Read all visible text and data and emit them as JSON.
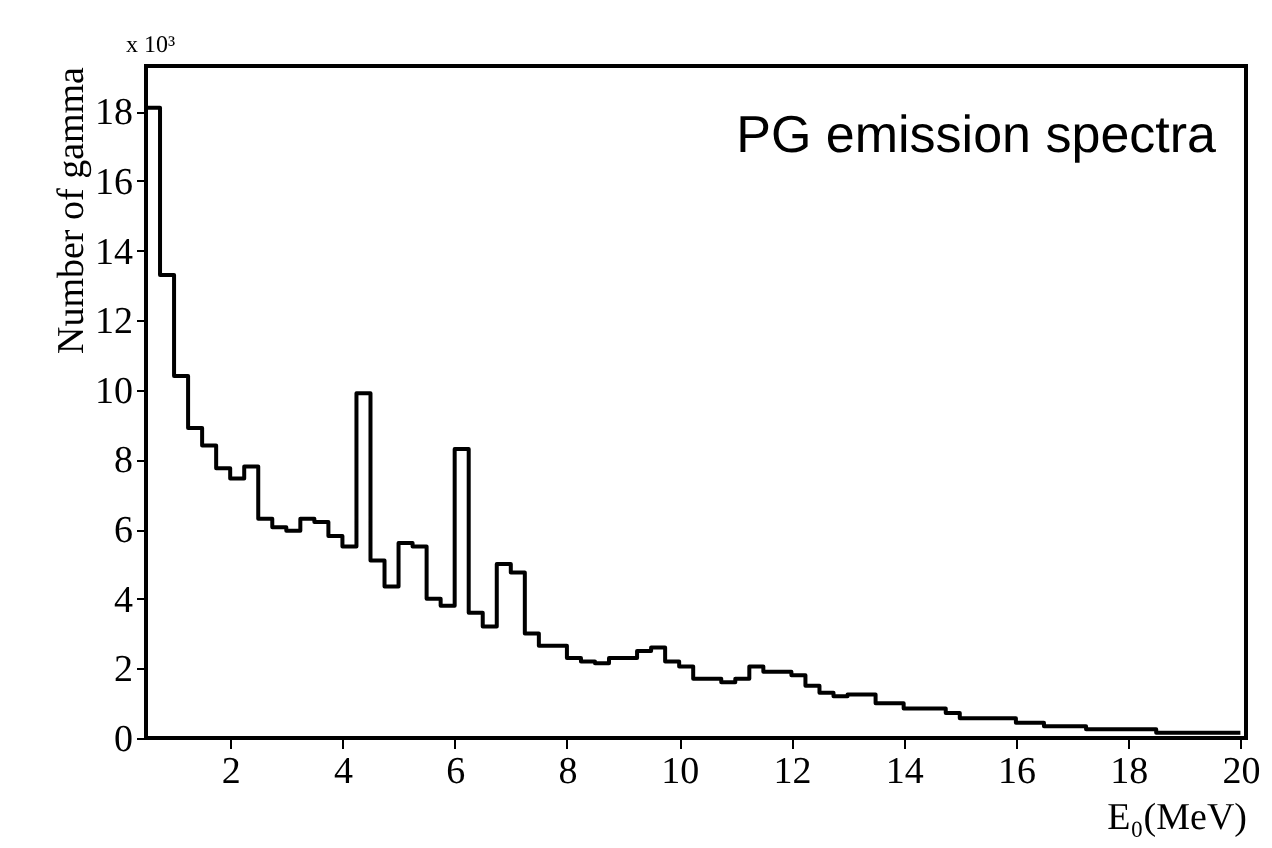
{
  "chart_data": {
    "type": "histogram",
    "title": "PG emission spectra",
    "xlabel": "E₀(MeV)",
    "ylabel": "Number of gamma",
    "annotations": [
      "x 10³"
    ],
    "bins": [
      0.5,
      0.75,
      1.0,
      1.25,
      1.5,
      1.75,
      2.0,
      2.25,
      2.5,
      2.75,
      3.0,
      3.25,
      3.5,
      3.75,
      4.0,
      4.25,
      4.5,
      4.75,
      5.0,
      5.25,
      5.5,
      5.75,
      6.0,
      6.25,
      6.5,
      6.75,
      7.0,
      7.25,
      7.5,
      7.75,
      8.0,
      8.25,
      8.5,
      8.75,
      9.0,
      9.25,
      9.5,
      9.75,
      10.0,
      10.25,
      10.5,
      10.75,
      11.0,
      11.25,
      11.5,
      11.75,
      12.0,
      12.25,
      12.5,
      12.75,
      13.0,
      13.25,
      13.5,
      13.75,
      14.0,
      14.25,
      14.5,
      14.75,
      15.0,
      15.25,
      15.5,
      15.75,
      16.0,
      16.25,
      16.5,
      16.75,
      17.0,
      17.25,
      17.5,
      17.75,
      18.0,
      18.25,
      18.5,
      18.75,
      19.0,
      19.25,
      19.5,
      19.75,
      20.0
    ],
    "values": [
      18.1,
      13.3,
      10.4,
      8.9,
      8.4,
      7.75,
      7.45,
      7.8,
      6.3,
      6.05,
      5.95,
      6.3,
      6.2,
      5.8,
      5.5,
      9.9,
      5.1,
      4.35,
      5.6,
      5.5,
      4.0,
      3.8,
      8.3,
      3.6,
      3.2,
      5.0,
      4.75,
      3.0,
      2.65,
      2.65,
      2.3,
      2.2,
      2.15,
      2.3,
      2.3,
      2.5,
      2.6,
      2.2,
      2.05,
      1.7,
      1.7,
      1.6,
      1.7,
      2.05,
      1.9,
      1.9,
      1.8,
      1.5,
      1.3,
      1.2,
      1.25,
      1.25,
      1.0,
      1.0,
      0.85,
      0.85,
      0.85,
      0.72,
      0.57,
      0.57,
      0.57,
      0.57,
      0.44,
      0.44,
      0.34,
      0.34,
      0.34,
      0.25,
      0.25,
      0.25,
      0.25,
      0.25,
      0.15,
      0.15,
      0.15,
      0.15,
      0.15,
      0.15
    ],
    "color": "#000000",
    "xlim": [
      0.5,
      20.1
    ],
    "ylim": [
      0,
      19.3
    ],
    "xticks": [
      2,
      4,
      6,
      8,
      10,
      12,
      14,
      16,
      18,
      20
    ],
    "yticks": [
      0,
      2,
      4,
      6,
      8,
      10,
      12,
      14,
      16,
      18
    ],
    "grid": false
  }
}
